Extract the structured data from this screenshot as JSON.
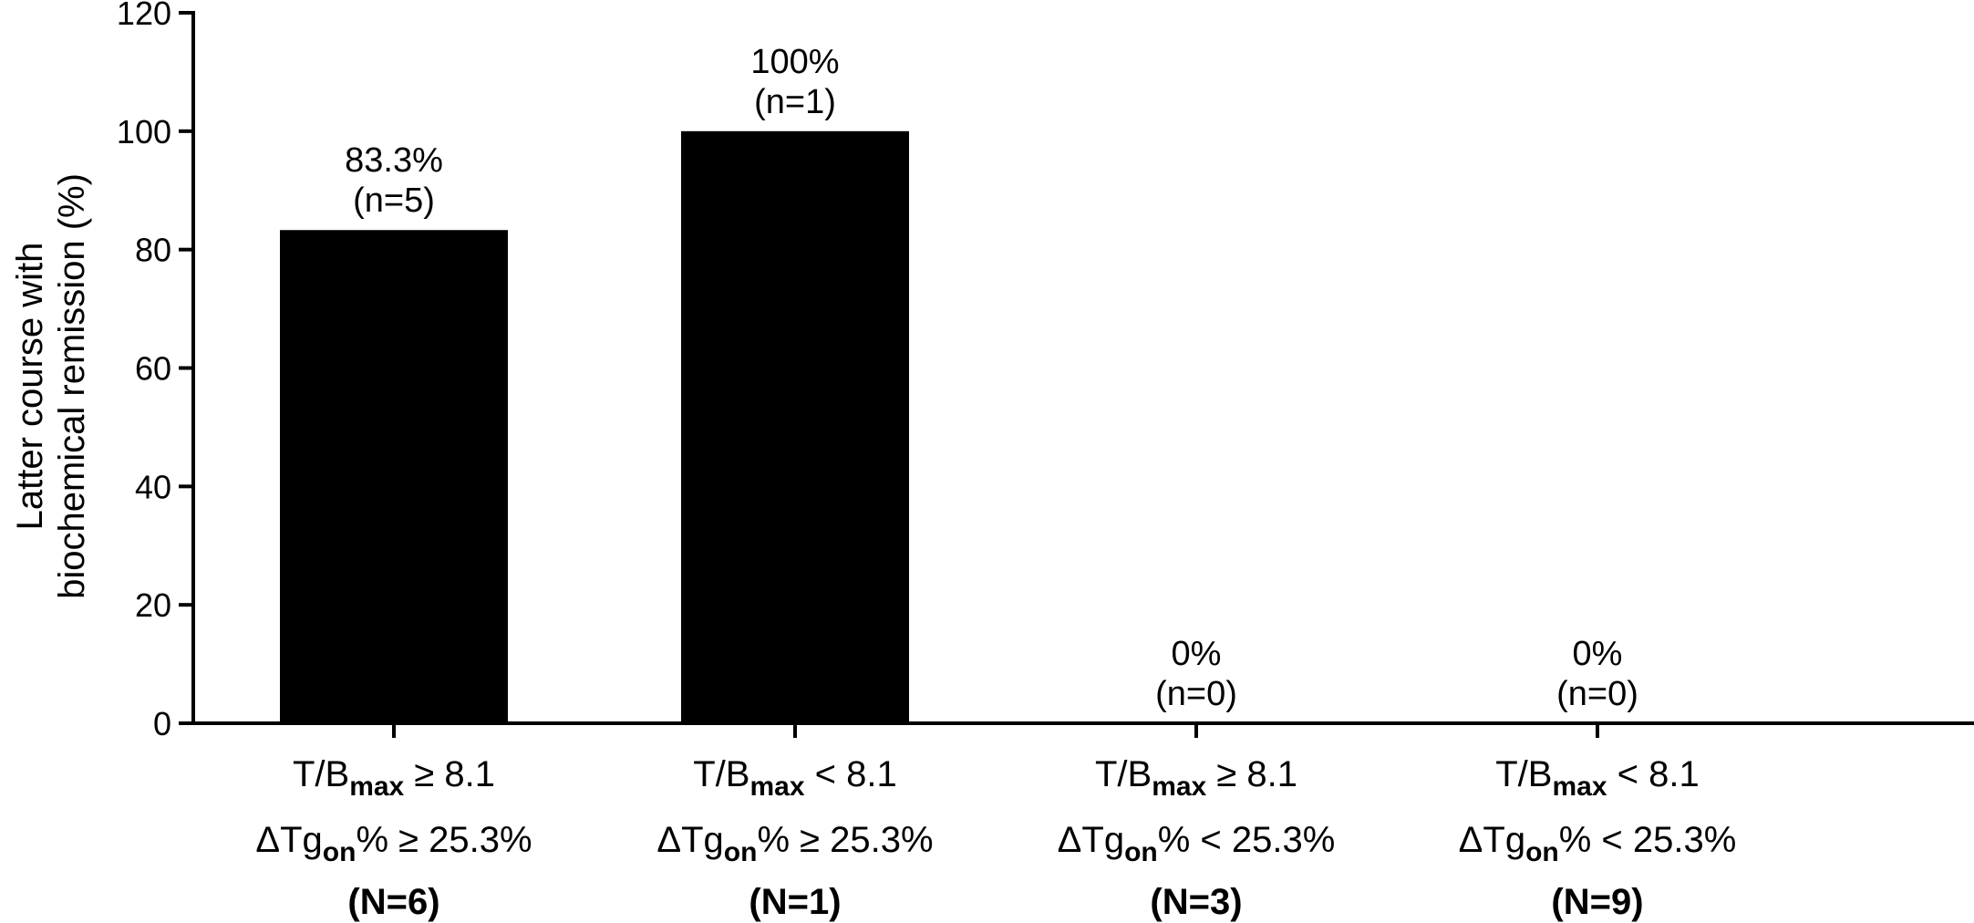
{
  "chart_data": {
    "type": "bar",
    "ylabel_lines": [
      "Latter course with",
      "biochemical remission (%)"
    ],
    "ylim": [
      0,
      120
    ],
    "yticks": [
      0,
      20,
      40,
      60,
      80,
      100,
      120
    ],
    "categories": [
      {
        "lines": [
          {
            "parts": [
              {
                "t": "T/B"
              },
              {
                "t": "max",
                "sub": true
              },
              {
                "t": " ≥ 8.1"
              }
            ]
          },
          {
            "parts": [
              {
                "t": "ΔTg"
              },
              {
                "t": "on",
                "sub": true
              },
              {
                "t": "% ≥ 25.3%"
              }
            ]
          }
        ],
        "count": "(N=6)"
      },
      {
        "lines": [
          {
            "parts": [
              {
                "t": "T/B"
              },
              {
                "t": "max",
                "sub": true
              },
              {
                "t": " < 8.1"
              }
            ]
          },
          {
            "parts": [
              {
                "t": "ΔTg"
              },
              {
                "t": "on",
                "sub": true
              },
              {
                "t": "% ≥ 25.3%"
              }
            ]
          }
        ],
        "count": "(N=1)"
      },
      {
        "lines": [
          {
            "parts": [
              {
                "t": "T/B"
              },
              {
                "t": "max",
                "sub": true
              },
              {
                "t": " ≥ 8.1"
              }
            ]
          },
          {
            "parts": [
              {
                "t": "ΔTg"
              },
              {
                "t": "on",
                "sub": true
              },
              {
                "t": "% < 25.3%"
              }
            ]
          }
        ],
        "count": "(N=3)"
      },
      {
        "lines": [
          {
            "parts": [
              {
                "t": "T/B"
              },
              {
                "t": "max",
                "sub": true
              },
              {
                "t": " < 8.1"
              }
            ]
          },
          {
            "parts": [
              {
                "t": "ΔTg"
              },
              {
                "t": "on",
                "sub": true
              },
              {
                "t": "% < 25.3%"
              }
            ]
          }
        ],
        "count": "(N=9)"
      }
    ],
    "values": [
      83.3,
      100,
      0,
      0
    ],
    "bar_labels": [
      [
        "83.3%",
        "(n=5)"
      ],
      [
        "100%",
        "(n=1)"
      ],
      [
        "0%",
        "(n=0)"
      ],
      [
        "0%",
        "(n=0)"
      ]
    ],
    "bar_color": "#000000",
    "grid": false,
    "legend": "none"
  }
}
